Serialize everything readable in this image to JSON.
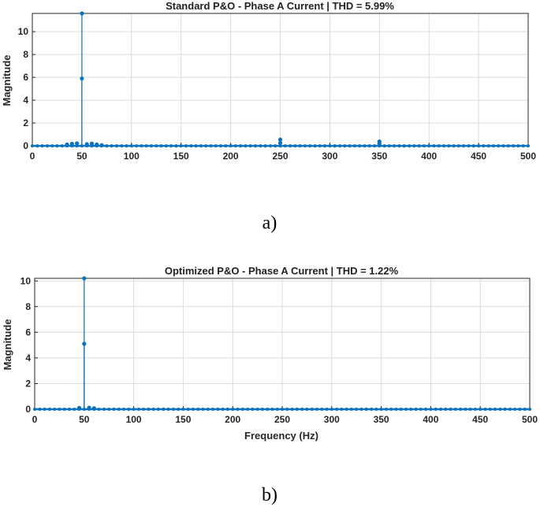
{
  "chart_data": [
    {
      "type": "stem",
      "title": "Standard P&O - Phase A Current | THD = 5.99%",
      "xlabel": "",
      "ylabel": "Magnitude",
      "xlim": [
        0,
        500
      ],
      "ylim": [
        0,
        11.6
      ],
      "xticks": [
        "0",
        "50",
        "100",
        "150",
        "200",
        "250",
        "300",
        "350",
        "400",
        "450",
        "500"
      ],
      "yticks": [
        "0",
        "2",
        "4",
        "6",
        "8",
        "10"
      ],
      "grid": true,
      "color": "#0b72bd",
      "points": [
        {
          "x": 35,
          "y": 0.12
        },
        {
          "x": 40,
          "y": 0.18
        },
        {
          "x": 45,
          "y": 0.22
        },
        {
          "x": 50,
          "y": 11.6
        },
        {
          "x": 50,
          "y": 5.9
        },
        {
          "x": 55,
          "y": 0.15
        },
        {
          "x": 60,
          "y": 0.2
        },
        {
          "x": 65,
          "y": 0.12
        },
        {
          "x": 70,
          "y": 0.06
        },
        {
          "x": 250,
          "y": 0.55
        },
        {
          "x": 250,
          "y": 0.25
        },
        {
          "x": 350,
          "y": 0.38
        },
        {
          "x": 350,
          "y": 0.2
        }
      ],
      "caption": "a)"
    },
    {
      "type": "stem",
      "title": "Optimized P&O - Phase A Current | THD = 1.22%",
      "xlabel": "Frequency (Hz)",
      "ylabel": "Magnitude",
      "xlim": [
        0,
        500
      ],
      "ylim": [
        0,
        10.2
      ],
      "xticks": [
        "0",
        "50",
        "100",
        "150",
        "200",
        "250",
        "300",
        "350",
        "400",
        "450",
        "500"
      ],
      "yticks": [
        "0",
        "2",
        "4",
        "6",
        "8",
        "10"
      ],
      "grid": true,
      "color": "#0b72bd",
      "points": [
        {
          "x": 45,
          "y": 0.1
        },
        {
          "x": 50,
          "y": 10.2
        },
        {
          "x": 50,
          "y": 5.1
        },
        {
          "x": 55,
          "y": 0.12
        },
        {
          "x": 60,
          "y": 0.08
        }
      ],
      "caption": "b)"
    }
  ]
}
